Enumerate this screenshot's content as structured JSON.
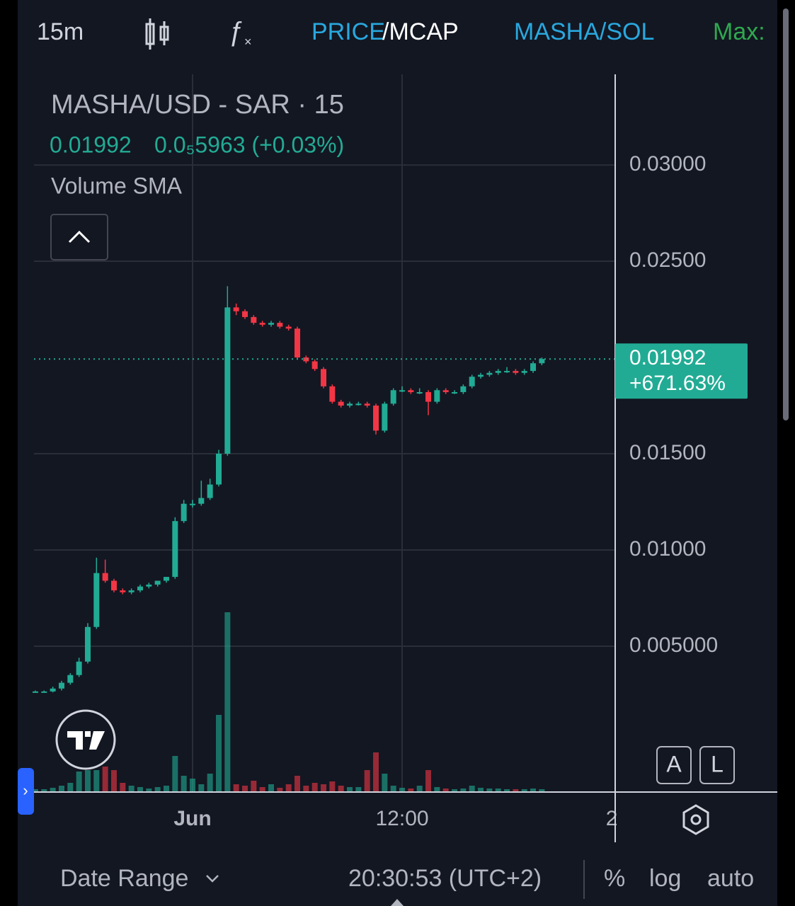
{
  "toolbar": {
    "interval": "15m",
    "price": "PRICE",
    "mcap": "/MCAP",
    "pair": "MASHA/SOL",
    "max": "Max:"
  },
  "chart_data": {
    "type": "candlestick",
    "title": "MASHA/USD - SAR · 15",
    "change": "0.0₅5963 (+0.03%)",
    "indicator": "Volume SMA",
    "up_color": "#22ab94",
    "down_color": "#f23645",
    "x": [
      -9,
      -8.5,
      -8,
      -7.5,
      -7,
      -6.5,
      -6,
      -5.5,
      -5,
      -4.5,
      -4,
      -3.5,
      -3,
      -2.5,
      -2,
      -1.5,
      -1,
      -0.5,
      0,
      0.5,
      1,
      1.5,
      2,
      2.5,
      3,
      3.5,
      4,
      4.5,
      5,
      5.5,
      6,
      6.5,
      7,
      7.5,
      8,
      8.5,
      9,
      9.5,
      10,
      10.5,
      11,
      11.5,
      12,
      12.5,
      13,
      13.5,
      14,
      14.5,
      15,
      15.5,
      16,
      16.5,
      17,
      17.5,
      18,
      18.5,
      19,
      19.5,
      20
    ],
    "open": [
      0.00265,
      0.00265,
      0.00265,
      0.0028,
      0.0031,
      0.0035,
      0.0042,
      0.006,
      0.0088,
      0.0084,
      0.0079,
      0.0078,
      0.0079,
      0.0081,
      0.0082,
      0.0084,
      0.0086,
      0.0115,
      0.0124,
      0.0124,
      0.0127,
      0.0134,
      0.015,
      0.0226,
      0.0224,
      0.0221,
      0.0218,
      0.0217,
      0.0218,
      0.0216,
      0.0215,
      0.02,
      0.0198,
      0.0194,
      0.0185,
      0.0177,
      0.0175,
      0.0176,
      0.0176,
      0.0175,
      0.0162,
      0.0176,
      0.0183,
      0.0183,
      0.0182,
      0.0182,
      0.0177,
      0.0183,
      0.0182,
      0.0182,
      0.0185,
      0.019,
      0.0191,
      0.0192,
      0.0193,
      0.0193,
      0.0192,
      0.0193,
      0.0197
    ],
    "high": [
      0.0027,
      0.0027,
      0.0029,
      0.0032,
      0.0036,
      0.0044,
      0.0062,
      0.0096,
      0.0095,
      0.0085,
      0.008,
      0.008,
      0.0082,
      0.0083,
      0.0084,
      0.0086,
      0.0117,
      0.0126,
      0.0126,
      0.0136,
      0.0137,
      0.0152,
      0.0237,
      0.0228,
      0.0225,
      0.0222,
      0.0219,
      0.0219,
      0.0219,
      0.0217,
      0.0216,
      0.0201,
      0.0199,
      0.0195,
      0.0186,
      0.0178,
      0.0177,
      0.0177,
      0.0177,
      0.0176,
      0.0177,
      0.0184,
      0.0185,
      0.0184,
      0.0184,
      0.0183,
      0.0184,
      0.0184,
      0.0183,
      0.0186,
      0.0191,
      0.0192,
      0.0193,
      0.0194,
      0.0195,
      0.0194,
      0.0194,
      0.0198,
      0.02
    ],
    "low": [
      0.0026,
      0.0026,
      0.0026,
      0.0027,
      0.003,
      0.0034,
      0.0041,
      0.0059,
      0.0083,
      0.0078,
      0.0077,
      0.0077,
      0.0078,
      0.008,
      0.0081,
      0.0083,
      0.0085,
      0.0114,
      0.0122,
      0.0123,
      0.0126,
      0.0133,
      0.0149,
      0.0222,
      0.022,
      0.0217,
      0.0216,
      0.0216,
      0.0215,
      0.0214,
      0.0199,
      0.0197,
      0.0193,
      0.0184,
      0.0176,
      0.0174,
      0.0174,
      0.0175,
      0.0174,
      0.016,
      0.0161,
      0.0175,
      0.0182,
      0.0181,
      0.0181,
      0.017,
      0.0176,
      0.0181,
      0.0181,
      0.0181,
      0.0184,
      0.0189,
      0.019,
      0.0191,
      0.0192,
      0.0191,
      0.0191,
      0.0192,
      0.0196
    ],
    "close": [
      0.00265,
      0.00265,
      0.0028,
      0.0031,
      0.0035,
      0.0042,
      0.006,
      0.0088,
      0.0084,
      0.0079,
      0.0078,
      0.0079,
      0.0081,
      0.0082,
      0.0084,
      0.0086,
      0.0115,
      0.0124,
      0.0124,
      0.0127,
      0.0134,
      0.015,
      0.0226,
      0.0224,
      0.0221,
      0.0218,
      0.0217,
      0.0218,
      0.0216,
      0.0215,
      0.02,
      0.0198,
      0.0194,
      0.0185,
      0.0177,
      0.0175,
      0.0176,
      0.0176,
      0.0175,
      0.0162,
      0.0176,
      0.0183,
      0.0183,
      0.0182,
      0.0182,
      0.0177,
      0.0183,
      0.0182,
      0.0182,
      0.0185,
      0.019,
      0.0191,
      0.0192,
      0.0193,
      0.0193,
      0.0192,
      0.0193,
      0.0197,
      0.01992
    ],
    "volume": [
      3,
      3,
      5,
      8,
      12,
      28,
      30,
      30,
      35,
      30,
      12,
      8,
      6,
      4,
      6,
      8,
      50,
      22,
      18,
      10,
      25,
      108,
      253,
      10,
      8,
      15,
      6,
      10,
      5,
      10,
      22,
      8,
      12,
      10,
      14,
      8,
      6,
      6,
      30,
      55,
      25,
      8,
      5,
      4,
      8,
      30,
      6,
      4,
      3,
      4,
      8,
      5,
      4,
      4,
      3,
      3,
      3,
      4,
      3
    ],
    "xlim": [
      -9.08,
      24.16
    ],
    "xticks": [
      {
        "value": 0,
        "label": "Jun"
      },
      {
        "value": 12,
        "label": "12:00"
      },
      {
        "value": 24,
        "label": "2"
      }
    ],
    "ylim": [
      -0.00254,
      0.03471
    ],
    "yticks": [
      {
        "value": 0.005,
        "label": "0.005000"
      },
      {
        "value": 0.01,
        "label": "0.01000"
      },
      {
        "value": 0.015,
        "label": "0.01500"
      },
      {
        "value": 0.025,
        "label": "0.02500"
      },
      {
        "value": 0.03,
        "label": "0.03000"
      }
    ],
    "grid": true,
    "price_line": {
      "value": 0.01992,
      "change": "+671.63%"
    },
    "scale_buttons": [
      "A",
      "L"
    ]
  },
  "footer": {
    "date_range": "Date Range",
    "time": "20:30:53 (UTC+2)",
    "percent": "%",
    "log": "log",
    "auto": "auto"
  }
}
